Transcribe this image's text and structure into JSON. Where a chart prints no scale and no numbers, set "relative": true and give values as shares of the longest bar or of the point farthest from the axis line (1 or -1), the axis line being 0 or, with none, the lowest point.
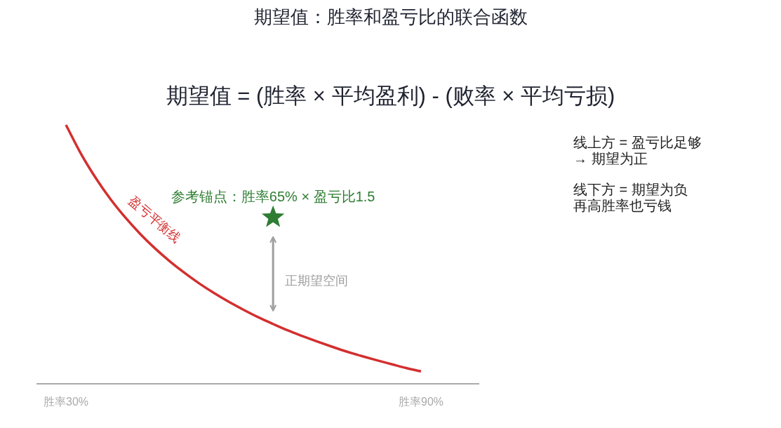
{
  "chart_data": {
    "type": "line",
    "title": "期望值：胜率和盈亏比的联合函数",
    "subtitle": "期望值 = (胜率 × 平均盈利) - (败率 × 平均亏损)",
    "relative": true,
    "categories": [
      "胜率30%",
      null,
      null,
      null,
      null,
      null,
      null,
      null,
      null,
      null,
      null,
      null,
      null,
      null,
      null,
      null,
      null,
      null,
      null,
      null,
      null,
      null,
      null,
      null,
      "胜率90%"
    ],
    "series": [
      {
        "name": "盈亏平衡线",
        "color": "#d32f2f",
        "values": [
          1.0,
          0.89,
          0.796,
          0.714,
          0.643,
          0.58,
          0.524,
          0.474,
          0.429,
          0.388,
          0.351,
          0.317,
          0.286,
          0.257,
          0.231,
          0.206,
          0.184,
          0.163,
          0.143,
          0.124,
          0.107,
          0.091,
          0.076,
          0.061,
          0.048
        ]
      },
      {
        "type": "scatter",
        "name": "参考锚点：胜率65% × 盈亏比1.5",
        "color": "#2e7d32",
        "marker": "star",
        "values": [
          null,
          null,
          null,
          null,
          null,
          null,
          null,
          null,
          null,
          null,
          null,
          null,
          null,
          null,
          0.643,
          null,
          null,
          null,
          null,
          null,
          null,
          null,
          null,
          null,
          null
        ]
      }
    ],
    "annotations": [
      "正期望空间",
      "线上方 = 盈亏比足够",
      "→ 期望为正",
      "线下方 = 期望为负",
      "再高胜率也亏钱"
    ]
  }
}
